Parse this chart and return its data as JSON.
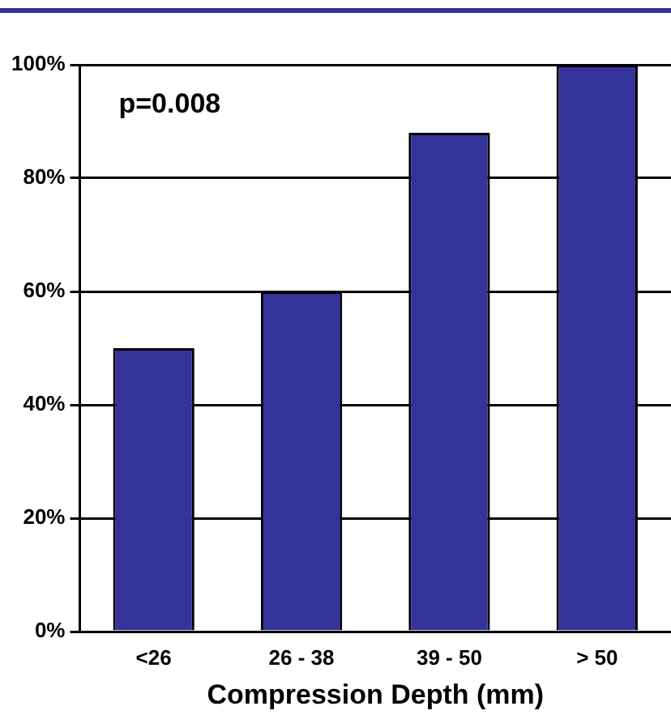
{
  "chart_data": {
    "type": "bar",
    "xlabel": "Compression Depth (mm)",
    "categories": [
      "<26",
      "26 - 38",
      "39 - 50",
      "> 50"
    ],
    "values": [
      50,
      60,
      88,
      100
    ],
    "color": "#333399",
    "ylim": [
      0,
      100
    ],
    "yticks": [
      {
        "value": 0,
        "label": "0%"
      },
      {
        "value": 20,
        "label": "20%"
      },
      {
        "value": 40,
        "label": "40%"
      },
      {
        "value": 60,
        "label": "60%"
      },
      {
        "value": 80,
        "label": "80%"
      },
      {
        "value": 100,
        "label": "100%"
      }
    ],
    "grid": "y",
    "legend": false,
    "annotations": [
      "p=0.008"
    ]
  }
}
